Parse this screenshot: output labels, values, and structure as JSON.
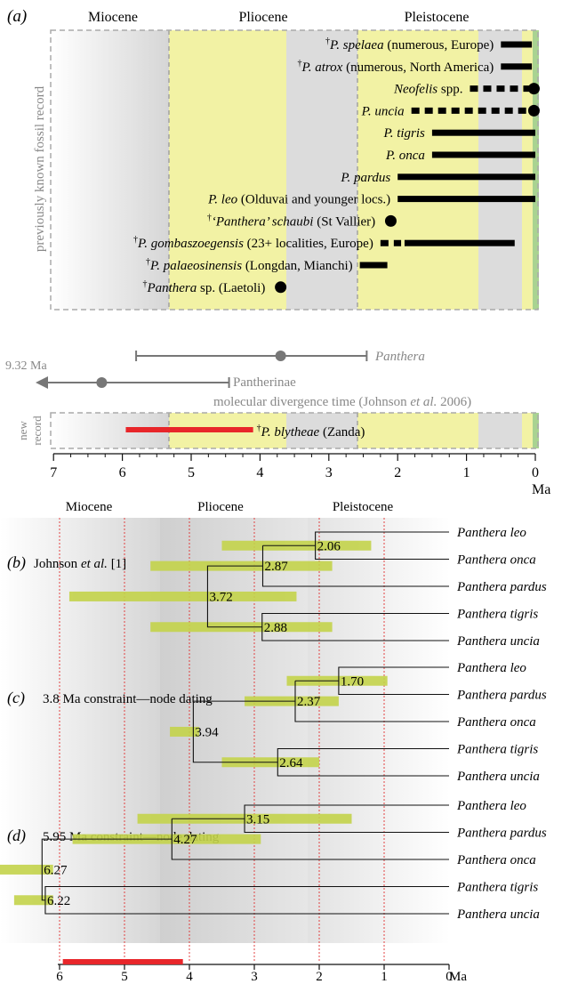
{
  "epochs": [
    "Miocene",
    "Pliocene",
    "Pleistocene"
  ],
  "panel_a": {
    "label": "(a)",
    "side_label": "previously known fossil record",
    "records": [
      {
        "dagger": true,
        "name": "P. spelaea",
        "rest": " (numerous, Europe)",
        "segments": [
          [
            0.5,
            0.05
          ]
        ],
        "dotted": [],
        "dot": null
      },
      {
        "dagger": true,
        "name": "P. atrox",
        "rest": " (numerous, North America)",
        "segments": [
          [
            0.5,
            0.05
          ]
        ],
        "dotted": [],
        "dot": null
      },
      {
        "dagger": false,
        "name": "Neofelis",
        "rest": " spp.",
        "segments": [],
        "dotted": [
          [
            0.95,
            0.05
          ]
        ],
        "dot": 0.02
      },
      {
        "dagger": false,
        "name": "P. uncia",
        "rest": "",
        "segments": [],
        "dotted": [
          [
            1.8,
            0.05
          ]
        ],
        "dot": 0.02
      },
      {
        "dagger": false,
        "name": "P. tigris",
        "rest": "",
        "segments": [
          [
            1.5,
            0.0
          ]
        ],
        "dotted": [],
        "dot": null
      },
      {
        "dagger": false,
        "name": "P. onca",
        "rest": "",
        "segments": [
          [
            1.5,
            0.0
          ]
        ],
        "dotted": [],
        "dot": null
      },
      {
        "dagger": false,
        "name": "P. pardus",
        "rest": "",
        "segments": [
          [
            2.0,
            0.0
          ]
        ],
        "dotted": [],
        "dot": null
      },
      {
        "dagger": false,
        "name": "P. leo",
        "rest": " (Olduvai and younger locs.)",
        "segments": [
          [
            2.0,
            0.0
          ]
        ],
        "dotted": [],
        "dot": null
      },
      {
        "dagger": true,
        "name": "‘Panthera’ schaubi",
        "rest": " (St Vallier)",
        "segments": [],
        "dotted": [],
        "dot": 2.1
      },
      {
        "dagger": true,
        "name": "P. gombaszoegensis",
        "rest": " (23+ localities, Europe)",
        "segments": [
          [
            1.9,
            0.3
          ]
        ],
        "dotted": [
          [
            2.25,
            1.95
          ]
        ],
        "dot": null
      },
      {
        "dagger": true,
        "name": "P. palaeosinensis",
        "rest": " (Longdan, Mianchi)",
        "segments": [
          [
            2.55,
            2.15
          ]
        ],
        "dotted": [],
        "dot": null
      },
      {
        "dagger": true,
        "name": "Panthera",
        "rest": " sp. (Laetoli)",
        "segments": [],
        "dotted": [],
        "dot": 3.7
      }
    ],
    "molecular": {
      "panthera_label": "Panthera",
      "panthera_range": [
        5.8,
        2.45
      ],
      "panthera_point": 3.7,
      "pantherinae_label": "Pantherinae",
      "pantherinae_range": [
        7.0,
        4.45
      ],
      "pantherinae_point": 6.3,
      "arrow_label": "9.32 Ma",
      "caption": "molecular divergence time (Johnson et al. 2006)",
      "caption_pre": "molecular divergence time (Johnson ",
      "caption_em": "et al.",
      "caption_post": " 2006)"
    },
    "new_record": {
      "side_label_1": "new",
      "side_label_2": "record",
      "range": [
        5.95,
        4.1
      ],
      "name": "P. blytheae",
      "rest": " (Zanda)",
      "color": "#e8262a"
    },
    "axis_ticks": [
      "7",
      "6",
      "5",
      "4",
      "3",
      "2",
      "1",
      "0"
    ],
    "axis_unit": "Ma"
  },
  "trees": [
    {
      "label": "(b)",
      "title_pre": "Johnson ",
      "title_em": "et al.",
      "title_post": " [1]",
      "tips": [
        "Panthera leo",
        "Panthera onca",
        "Panthera pardus",
        "Panthera tigris",
        "Panthera uncia"
      ],
      "nodes": [
        {
          "age": "2.06",
          "t": 2.06,
          "hpd": [
            3.5,
            1.2
          ]
        },
        {
          "age": "2.87",
          "t": 2.87,
          "hpd": [
            4.6,
            1.8
          ]
        },
        {
          "age": "3.72",
          "t": 3.72,
          "hpd": [
            5.85,
            2.35
          ]
        },
        {
          "age": "2.88",
          "t": 2.88,
          "hpd": [
            4.6,
            1.8
          ]
        }
      ]
    },
    {
      "label": "(c)",
      "title_pre": "3.8 Ma constraint—node dating",
      "title_em": "",
      "title_post": "",
      "tips": [
        "Panthera leo",
        "Panthera pardus",
        "Panthera onca",
        "Panthera tigris",
        "Panthera uncia"
      ],
      "nodes": [
        {
          "age": "1.70",
          "t": 1.7,
          "hpd": [
            2.5,
            0.95
          ]
        },
        {
          "age": "2.37",
          "t": 2.37,
          "hpd": [
            3.15,
            1.7
          ]
        },
        {
          "age": "3.94",
          "t": 3.94,
          "hpd": [
            4.3,
            3.85
          ]
        },
        {
          "age": "2.64",
          "t": 2.64,
          "hpd": [
            3.5,
            2.0
          ]
        }
      ]
    },
    {
      "label": "(d)",
      "title_pre": "5.95 Ma constraint—node dating",
      "title_em": "",
      "title_post": "",
      "tips": [
        "Panthera leo",
        "Panthera pardus",
        "Panthera onca",
        "Panthera tigris",
        "Panthera uncia"
      ],
      "nodes": [
        {
          "age": "3.15",
          "t": 3.15,
          "hpd": [
            4.8,
            1.5
          ]
        },
        {
          "age": "4.27",
          "t": 4.27,
          "hpd": [
            5.8,
            2.9
          ]
        },
        {
          "age": "6.27",
          "t": 6.27,
          "hpd": [
            7.3,
            6.1
          ]
        },
        {
          "age": "6.22",
          "t": 6.22,
          "hpd": [
            6.7,
            6.1
          ]
        }
      ]
    }
  ],
  "bottom_axis": {
    "ticks": [
      "6",
      "5",
      "4",
      "3",
      "2",
      "1",
      "0"
    ],
    "unit": "Ma",
    "bar": [
      5.95,
      4.1
    ]
  },
  "colors": {
    "yellow": "#f2f2a4",
    "gray": "#d8d8d8",
    "green": "#a9d391",
    "hpd": "#c3d34a",
    "red": "#e8262a",
    "grid_red": "#e03030"
  }
}
